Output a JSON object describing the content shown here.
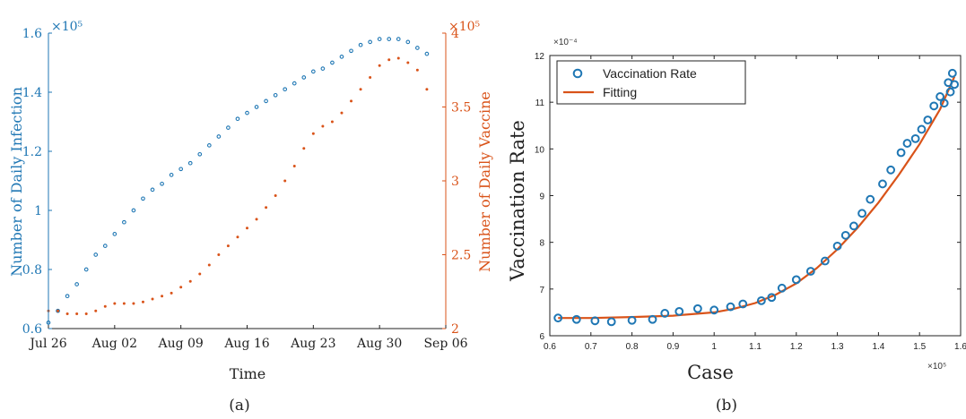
{
  "chart_data": [
    {
      "type": "scatter",
      "panel_label": "(a)",
      "xlabel": "Time",
      "x_ticks": [
        "Jul 26",
        "Aug 02",
        "Aug 09",
        "Aug 16",
        "Aug 23",
        "Aug 30",
        "Sep 06"
      ],
      "x_range": [
        "2021-07-26",
        "2021-09-06"
      ],
      "left_axis": {
        "label": "Number of Daily Infection",
        "multiplier": "×10⁵",
        "ylim": [
          0.6,
          1.6
        ],
        "ticks": [
          "0.6",
          "0.8",
          "1",
          "1.2",
          "1.4",
          "1.6"
        ],
        "color": "#1f77b4"
      },
      "right_axis": {
        "label": "Number of Daily Vaccine",
        "multiplier": "×10⁵",
        "ylim": [
          2,
          4
        ],
        "ticks": [
          "2",
          "2.5",
          "3",
          "3.5",
          "4"
        ],
        "color": "#d95319"
      },
      "grid": false,
      "series": [
        {
          "axis": "left",
          "marker": "open-circle",
          "color": "#1f77b4",
          "x": [
            "2021-07-26",
            "2021-07-27",
            "2021-07-28",
            "2021-07-29",
            "2021-07-30",
            "2021-07-31",
            "2021-08-01",
            "2021-08-02",
            "2021-08-03",
            "2021-08-04",
            "2021-08-05",
            "2021-08-06",
            "2021-08-07",
            "2021-08-08",
            "2021-08-09",
            "2021-08-10",
            "2021-08-11",
            "2021-08-12",
            "2021-08-13",
            "2021-08-14",
            "2021-08-15",
            "2021-08-16",
            "2021-08-17",
            "2021-08-18",
            "2021-08-19",
            "2021-08-20",
            "2021-08-21",
            "2021-08-22",
            "2021-08-23",
            "2021-08-24",
            "2021-08-25",
            "2021-08-26",
            "2021-08-27",
            "2021-08-28",
            "2021-08-29",
            "2021-08-30",
            "2021-08-31",
            "2021-09-01",
            "2021-09-02",
            "2021-09-03",
            "2021-09-04"
          ],
          "values": [
            0.62,
            0.66,
            0.71,
            0.75,
            0.8,
            0.85,
            0.88,
            0.92,
            0.96,
            1.0,
            1.04,
            1.07,
            1.09,
            1.12,
            1.14,
            1.16,
            1.19,
            1.22,
            1.25,
            1.28,
            1.31,
            1.33,
            1.35,
            1.37,
            1.39,
            1.41,
            1.43,
            1.45,
            1.47,
            1.48,
            1.5,
            1.52,
            1.54,
            1.56,
            1.57,
            1.58,
            1.58,
            1.58,
            1.57,
            1.55,
            1.53
          ]
        },
        {
          "axis": "right",
          "marker": "dot",
          "color": "#d95319",
          "x": [
            "2021-07-26",
            "2021-07-27",
            "2021-07-28",
            "2021-07-29",
            "2021-07-30",
            "2021-07-31",
            "2021-08-01",
            "2021-08-02",
            "2021-08-03",
            "2021-08-04",
            "2021-08-05",
            "2021-08-06",
            "2021-08-07",
            "2021-08-08",
            "2021-08-09",
            "2021-08-10",
            "2021-08-11",
            "2021-08-12",
            "2021-08-13",
            "2021-08-14",
            "2021-08-15",
            "2021-08-16",
            "2021-08-17",
            "2021-08-18",
            "2021-08-19",
            "2021-08-20",
            "2021-08-21",
            "2021-08-22",
            "2021-08-23",
            "2021-08-24",
            "2021-08-25",
            "2021-08-26",
            "2021-08-27",
            "2021-08-28",
            "2021-08-29",
            "2021-08-30",
            "2021-08-31",
            "2021-09-01",
            "2021-09-02",
            "2021-09-03",
            "2021-09-04"
          ],
          "values": [
            2.12,
            2.12,
            2.1,
            2.1,
            2.1,
            2.12,
            2.15,
            2.17,
            2.17,
            2.17,
            2.18,
            2.2,
            2.22,
            2.24,
            2.28,
            2.32,
            2.37,
            2.43,
            2.5,
            2.56,
            2.62,
            2.68,
            2.74,
            2.82,
            2.9,
            3.0,
            3.1,
            3.22,
            3.32,
            3.37,
            3.4,
            3.46,
            3.54,
            3.62,
            3.7,
            3.78,
            3.82,
            3.83,
            3.8,
            3.75,
            3.62
          ]
        }
      ]
    },
    {
      "type": "scatter",
      "panel_label": "(b)",
      "xlabel": "Case",
      "ylabel": "Vaccination Rate",
      "x_multiplier": "×10⁵",
      "y_multiplier": "×10⁻⁴",
      "xlim": [
        0.6,
        1.6
      ],
      "ylim": [
        6,
        12
      ],
      "x_ticks": [
        "0.6",
        "0.7",
        "0.8",
        "0.9",
        "1",
        "1.1",
        "1.2",
        "1.3",
        "1.4",
        "1.5",
        "1.6"
      ],
      "y_ticks": [
        "6",
        "7",
        "8",
        "9",
        "10",
        "11",
        "12"
      ],
      "grid": false,
      "legend": {
        "placement": "top-left"
      },
      "series": [
        {
          "name": "Vaccination Rate",
          "marker": "open-circle",
          "color": "#1f77b4",
          "x": [
            0.62,
            0.665,
            0.71,
            0.75,
            0.8,
            0.85,
            0.88,
            0.915,
            0.96,
            1.0,
            1.04,
            1.07,
            1.115,
            1.14,
            1.165,
            1.2,
            1.235,
            1.27,
            1.3,
            1.32,
            1.34,
            1.36,
            1.38,
            1.41,
            1.43,
            1.455,
            1.47,
            1.49,
            1.505,
            1.52,
            1.535,
            1.55,
            1.56,
            1.57,
            1.575,
            1.58,
            1.585
          ],
          "values": [
            6.38,
            6.35,
            6.32,
            6.3,
            6.33,
            6.35,
            6.48,
            6.52,
            6.58,
            6.55,
            6.62,
            6.68,
            6.75,
            6.82,
            7.02,
            7.2,
            7.38,
            7.6,
            7.92,
            8.15,
            8.35,
            8.62,
            8.92,
            9.25,
            9.55,
            9.92,
            10.12,
            10.22,
            10.42,
            10.62,
            10.92,
            11.12,
            10.98,
            11.42,
            11.22,
            11.62,
            11.38
          ]
        },
        {
          "name": "Fitting",
          "marker": "line",
          "color": "#d95319",
          "x": [
            0.62,
            0.7,
            0.8,
            0.9,
            1.0,
            1.05,
            1.1,
            1.15,
            1.2,
            1.25,
            1.3,
            1.35,
            1.4,
            1.45,
            1.5,
            1.55,
            1.585
          ],
          "values": [
            6.38,
            6.38,
            6.4,
            6.43,
            6.5,
            6.58,
            6.7,
            6.88,
            7.12,
            7.45,
            7.85,
            8.32,
            8.85,
            9.45,
            10.1,
            10.85,
            11.55
          ]
        }
      ]
    }
  ]
}
